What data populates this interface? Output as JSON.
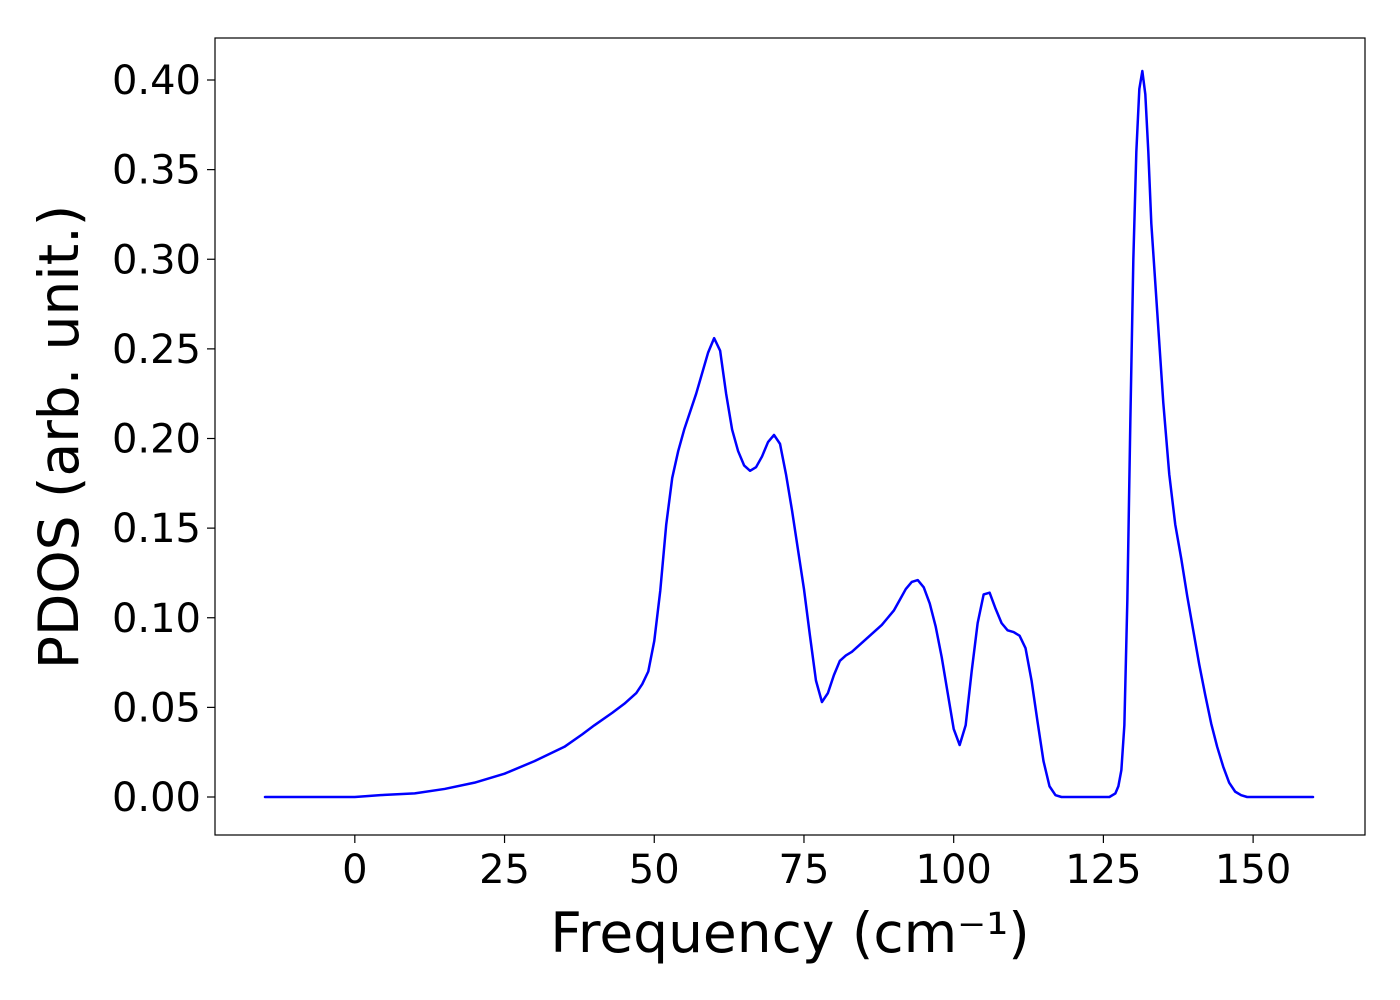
{
  "chart_data": {
    "type": "line",
    "xlabel": "Frequency (cm⁻¹)",
    "ylabel": "PDOS (arb. unit.)",
    "xlim": [
      -15,
      160
    ],
    "ylim": [
      -0.02,
      0.42
    ],
    "xticks": [
      0,
      25,
      50,
      75,
      100,
      125,
      150
    ],
    "xtick_labels": [
      "0",
      "25",
      "50",
      "75",
      "100",
      "125",
      "150"
    ],
    "yticks": [
      0.0,
      0.05,
      0.1,
      0.15,
      0.2,
      0.25,
      0.3,
      0.35,
      0.4
    ],
    "ytick_labels": [
      "0.00",
      "0.05",
      "0.10",
      "0.15",
      "0.20",
      "0.25",
      "0.30",
      "0.35",
      "0.40"
    ],
    "grid": false,
    "series": [
      {
        "color": "#0000ff",
        "x": [
          -15,
          0,
          2,
          5,
          10,
          15,
          20,
          25,
          30,
          35,
          38,
          40,
          43,
          45,
          47,
          48,
          49,
          50,
          51,
          52,
          53,
          54,
          55,
          57,
          59,
          60,
          61,
          62,
          63,
          64,
          65,
          66,
          67,
          68,
          69,
          70,
          71,
          72,
          73,
          74,
          75,
          76,
          77,
          78,
          79,
          80,
          81,
          82,
          83,
          84,
          85,
          86,
          87,
          88,
          89,
          90,
          91,
          92,
          93,
          94,
          95,
          96,
          97,
          98,
          99,
          100,
          101,
          102,
          103,
          104,
          105,
          106,
          107,
          108,
          109,
          110,
          111,
          112,
          113,
          114,
          115,
          116,
          117,
          118,
          119,
          120,
          122,
          125,
          126,
          127,
          127.5,
          128,
          128.5,
          129,
          129.5,
          130,
          130.5,
          131,
          131.5,
          132,
          132.5,
          133,
          134,
          135,
          136,
          137,
          138,
          139,
          140,
          141,
          142,
          143,
          144,
          145,
          146,
          147,
          148,
          149,
          150,
          152,
          155,
          160
        ],
        "y": [
          0.0,
          0.0,
          0.0005,
          0.0012,
          0.002,
          0.0045,
          0.008,
          0.013,
          0.02,
          0.028,
          0.035,
          0.04,
          0.047,
          0.052,
          0.058,
          0.063,
          0.07,
          0.087,
          0.115,
          0.152,
          0.178,
          0.193,
          0.205,
          0.225,
          0.248,
          0.256,
          0.249,
          0.225,
          0.205,
          0.193,
          0.185,
          0.182,
          0.184,
          0.19,
          0.198,
          0.202,
          0.197,
          0.18,
          0.16,
          0.138,
          0.116,
          0.09,
          0.065,
          0.053,
          0.058,
          0.068,
          0.076,
          0.079,
          0.081,
          0.084,
          0.087,
          0.09,
          0.093,
          0.096,
          0.1,
          0.104,
          0.11,
          0.116,
          0.12,
          0.121,
          0.117,
          0.108,
          0.095,
          0.078,
          0.058,
          0.038,
          0.029,
          0.04,
          0.07,
          0.097,
          0.113,
          0.114,
          0.105,
          0.097,
          0.093,
          0.092,
          0.09,
          0.083,
          0.065,
          0.042,
          0.02,
          0.006,
          0.001,
          0.0,
          0.0,
          0.0,
          0.0,
          0.0,
          0.0,
          0.002,
          0.006,
          0.015,
          0.04,
          0.11,
          0.21,
          0.3,
          0.36,
          0.395,
          0.405,
          0.392,
          0.36,
          0.32,
          0.27,
          0.22,
          0.18,
          0.152,
          0.133,
          0.112,
          0.093,
          0.074,
          0.057,
          0.041,
          0.028,
          0.017,
          0.008,
          0.003,
          0.001,
          0.0,
          0.0,
          0.0,
          0.0,
          0.0
        ]
      }
    ]
  }
}
